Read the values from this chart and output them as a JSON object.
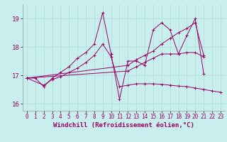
{
  "title": "",
  "xlabel": "Windchill (Refroidissement éolien,°C)",
  "ylabel": "",
  "background_color": "#c8eeed",
  "grid_color": "#aadddb",
  "line_color": "#990066",
  "x": [
    0,
    1,
    2,
    3,
    4,
    5,
    6,
    7,
    8,
    9,
    10,
    11,
    12,
    13,
    14,
    15,
    16,
    17,
    18,
    19,
    20,
    21,
    22,
    23
  ],
  "series": [
    [
      16.9,
      16.9,
      16.6,
      16.9,
      17.1,
      17.3,
      17.6,
      17.8,
      18.1,
      19.2,
      17.75,
      16.15,
      17.5,
      17.5,
      17.35,
      18.6,
      18.85,
      18.6,
      17.75,
      18.4,
      19.0,
      17.05,
      null,
      null
    ],
    [
      16.9,
      null,
      16.65,
      16.85,
      16.95,
      17.1,
      17.25,
      17.45,
      17.7,
      18.1,
      17.65,
      16.6,
      16.65,
      16.7,
      16.7,
      16.7,
      16.68,
      16.65,
      16.62,
      16.6,
      16.55,
      16.5,
      16.45,
      16.4
    ],
    [
      16.9,
      null,
      null,
      null,
      null,
      null,
      null,
      null,
      null,
      null,
      null,
      null,
      17.15,
      17.3,
      17.45,
      17.6,
      17.75,
      17.75,
      17.75,
      17.8,
      17.8,
      17.65,
      null,
      null
    ],
    [
      16.9,
      null,
      null,
      null,
      null,
      null,
      null,
      null,
      null,
      null,
      null,
      null,
      17.35,
      17.55,
      17.7,
      17.85,
      18.1,
      18.3,
      18.5,
      18.65,
      18.85,
      17.7,
      null,
      null
    ]
  ],
  "ylim": [
    15.75,
    19.5
  ],
  "xlim": [
    -0.5,
    23.5
  ],
  "yticks": [
    16,
    17,
    18,
    19
  ],
  "xticks": [
    0,
    1,
    2,
    3,
    4,
    5,
    6,
    7,
    8,
    9,
    10,
    11,
    12,
    13,
    14,
    15,
    16,
    17,
    18,
    19,
    20,
    21,
    22,
    23
  ],
  "tick_fontsize": 5.5,
  "xlabel_fontsize": 6.5
}
